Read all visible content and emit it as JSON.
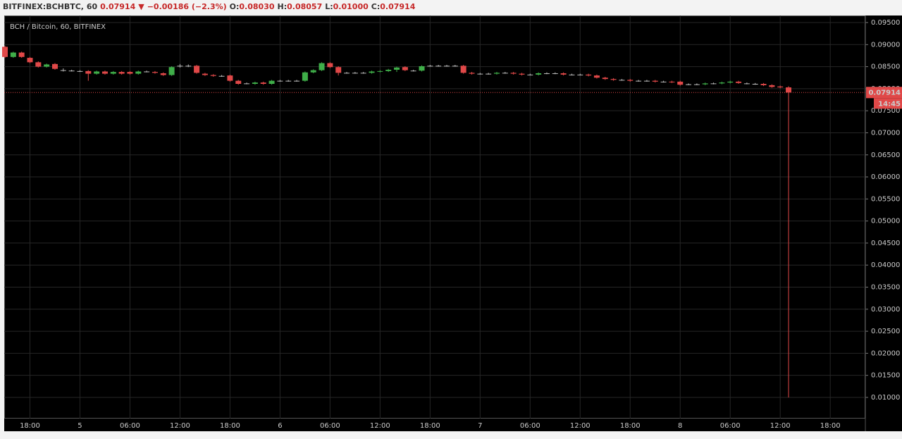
{
  "chart_data": {
    "type": "candlestick",
    "header": {
      "symbol": "BITFINEX:BCHBTC, 60",
      "last": "0.07914",
      "change": "−0.00186 (−2.3%)",
      "open_label": "O:",
      "open": "0.08030",
      "high_label": "H:",
      "high": "0.08057",
      "low_label": "L:",
      "low": "0.01000",
      "close_label": "C:",
      "close": "0.07914"
    },
    "title": "BCH / Bitcoin, 60, BITFINEX",
    "up_color": "#3fae49",
    "down_color": "#e04848",
    "grid": true,
    "categories": [
      null,
      null,
      null,
      "18:00",
      null,
      null,
      null,
      null,
      null,
      "5",
      null,
      null,
      null,
      null,
      null,
      "06:00",
      null,
      null,
      null,
      null,
      null,
      "12:00",
      null,
      null,
      null,
      null,
      null,
      "18:00",
      null,
      null,
      null,
      null,
      null,
      "6",
      null,
      null,
      null,
      null,
      null,
      "06:00",
      null,
      null,
      null,
      null,
      null,
      "12:00",
      null,
      null,
      null,
      null,
      null,
      "18:00",
      null,
      null,
      null,
      null,
      null,
      "7",
      null,
      null,
      null,
      null,
      null,
      "06:00",
      null,
      null,
      null,
      null,
      null,
      "12:00",
      null,
      null,
      null,
      null,
      null,
      "18:00",
      null,
      null,
      null,
      null,
      null,
      "8",
      null,
      null,
      null,
      null,
      null,
      "06:00",
      null,
      null,
      null,
      null,
      null,
      "12:00",
      null,
      null,
      null,
      null,
      null,
      "18:00",
      null,
      null,
      null,
      null
    ],
    "open": [
      0.0895,
      0.0872,
      0.0882,
      0.087,
      0.086,
      0.085,
      0.0856,
      0.0842,
      0.0841,
      0.084,
      0.084,
      0.0834,
      0.0839,
      0.0834,
      0.0838,
      0.0838,
      0.0834,
      0.0839,
      0.0838,
      0.0835,
      0.0831,
      0.0852,
      0.0852,
      0.0852,
      0.0834,
      0.0831,
      0.0829,
      0.083,
      0.0818,
      0.0812,
      0.0811,
      0.0814,
      0.0811,
      0.0818,
      0.0818,
      0.0818,
      0.0818,
      0.0837,
      0.0842,
      0.0858,
      0.0849,
      0.0836,
      0.0836,
      0.0836,
      0.0836,
      0.0839,
      0.084,
      0.0843,
      0.0849,
      0.0841,
      0.0841,
      0.0852,
      0.0852,
      0.0852,
      0.0852,
      0.0852,
      0.0836,
      0.0834,
      0.0834,
      0.0834,
      0.0836,
      0.0836,
      0.0834,
      0.0832,
      0.0832,
      0.0835,
      0.0835,
      0.0835,
      0.0832,
      0.0832,
      0.0832,
      0.083,
      0.0825,
      0.0822,
      0.082,
      0.082,
      0.0818,
      0.0818,
      0.0818,
      0.0816,
      0.0816,
      0.0816,
      0.081,
      0.081,
      0.081,
      0.0812,
      0.0812,
      0.0814,
      0.0816,
      0.0812,
      0.0811,
      0.0811,
      0.0808,
      0.0805,
      0.0803,
      null,
      null,
      null,
      null,
      null,
      null,
      null,
      null,
      null
    ],
    "high": [
      0.0897,
      0.0884,
      0.0884,
      0.0872,
      0.0862,
      0.0857,
      0.0858,
      0.0846,
      0.0843,
      0.0842,
      0.0842,
      0.0841,
      0.0841,
      0.084,
      0.084,
      0.084,
      0.0841,
      0.0841,
      0.084,
      0.0837,
      0.0851,
      0.0856,
      0.0855,
      0.0854,
      0.0836,
      0.0833,
      0.0831,
      0.0832,
      0.082,
      0.0814,
      0.0816,
      0.0816,
      0.082,
      0.082,
      0.082,
      0.082,
      0.0839,
      0.0844,
      0.086,
      0.086,
      0.0851,
      0.0838,
      0.0838,
      0.0838,
      0.0841,
      0.0842,
      0.0845,
      0.085,
      0.0851,
      0.0843,
      0.0853,
      0.0854,
      0.0854,
      0.0854,
      0.0854,
      0.0854,
      0.0838,
      0.0836,
      0.0836,
      0.0838,
      0.0838,
      0.0838,
      0.0836,
      0.0834,
      0.0837,
      0.0837,
      0.0837,
      0.0837,
      0.0834,
      0.0834,
      0.0834,
      0.0832,
      0.0827,
      0.0824,
      0.0822,
      0.0822,
      0.082,
      0.082,
      0.082,
      0.0818,
      0.0818,
      0.0818,
      0.0812,
      0.0812,
      0.0814,
      0.0814,
      0.0816,
      0.0818,
      0.0818,
      0.0814,
      0.0813,
      0.0813,
      0.081,
      0.0807,
      0.08057,
      null,
      null,
      null,
      null,
      null,
      null,
      null,
      null,
      null
    ],
    "low": [
      0.087,
      0.087,
      0.087,
      0.0858,
      0.0848,
      0.0848,
      0.0843,
      0.0839,
      0.0839,
      0.0838,
      0.0818,
      0.0832,
      0.0832,
      0.0832,
      0.0832,
      0.0832,
      0.0832,
      0.0837,
      0.0834,
      0.0829,
      0.0829,
      0.0848,
      0.0849,
      0.0834,
      0.0829,
      0.0827,
      0.0827,
      0.0816,
      0.0809,
      0.081,
      0.0809,
      0.0809,
      0.0809,
      0.0816,
      0.0816,
      0.0816,
      0.0816,
      0.0835,
      0.084,
      0.0847,
      0.083,
      0.0834,
      0.0834,
      0.0834,
      0.0834,
      0.0837,
      0.0838,
      0.0838,
      0.084,
      0.0839,
      0.0839,
      0.085,
      0.085,
      0.085,
      0.085,
      0.0834,
      0.0832,
      0.0832,
      0.0832,
      0.0832,
      0.0834,
      0.0832,
      0.083,
      0.083,
      0.083,
      0.0833,
      0.0833,
      0.083,
      0.083,
      0.083,
      0.0828,
      0.0823,
      0.082,
      0.0818,
      0.0818,
      0.0816,
      0.0816,
      0.0816,
      0.0814,
      0.0814,
      0.0813,
      0.0807,
      0.0808,
      0.0808,
      0.0808,
      0.081,
      0.081,
      0.0812,
      0.0811,
      0.081,
      0.0809,
      0.0806,
      0.0802,
      0.0801,
      0.01,
      null,
      null,
      null,
      null,
      null,
      null,
      null,
      null,
      null
    ],
    "close": [
      0.0872,
      0.0882,
      0.0872,
      0.086,
      0.085,
      0.0855,
      0.0845,
      0.0842,
      0.0841,
      0.084,
      0.0834,
      0.0839,
      0.0834,
      0.0838,
      0.0834,
      0.0834,
      0.0839,
      0.0839,
      0.0836,
      0.0831,
      0.0849,
      0.0852,
      0.0852,
      0.0836,
      0.0831,
      0.0829,
      0.0829,
      0.0818,
      0.0811,
      0.0812,
      0.0814,
      0.0811,
      0.0818,
      0.0818,
      0.0818,
      0.0818,
      0.0837,
      0.0842,
      0.0858,
      0.0849,
      0.0836,
      0.0836,
      0.0836,
      0.0836,
      0.0839,
      0.084,
      0.0843,
      0.0848,
      0.0842,
      0.0841,
      0.0851,
      0.0852,
      0.0852,
      0.0852,
      0.0852,
      0.0836,
      0.0834,
      0.0834,
      0.0834,
      0.0836,
      0.0836,
      0.0834,
      0.0832,
      0.0832,
      0.0835,
      0.0835,
      0.0835,
      0.0832,
      0.0832,
      0.0832,
      0.083,
      0.0825,
      0.0822,
      0.082,
      0.082,
      0.0818,
      0.0818,
      0.0818,
      0.0816,
      0.0816,
      0.0815,
      0.0809,
      0.081,
      0.081,
      0.0812,
      0.0812,
      0.0814,
      0.0816,
      0.0813,
      0.0812,
      0.0811,
      0.0808,
      0.0804,
      0.0803,
      0.07914,
      null,
      null,
      null,
      null,
      null,
      null,
      null,
      null,
      null
    ],
    "ylim": [
      0.0052,
      0.0966
    ],
    "yticks": [
      {
        "value": 0.01,
        "label": "0.01000"
      },
      {
        "value": 0.015,
        "label": "0.01500"
      },
      {
        "value": 0.02,
        "label": "0.02000"
      },
      {
        "value": 0.025,
        "label": "0.02500"
      },
      {
        "value": 0.03,
        "label": "0.03000"
      },
      {
        "value": 0.035,
        "label": "0.03500"
      },
      {
        "value": 0.04,
        "label": "0.04000"
      },
      {
        "value": 0.045,
        "label": "0.04500"
      },
      {
        "value": 0.05,
        "label": "0.05000"
      },
      {
        "value": 0.055,
        "label": "0.05500"
      },
      {
        "value": 0.06,
        "label": "0.06000"
      },
      {
        "value": 0.065,
        "label": "0.06500"
      },
      {
        "value": 0.07,
        "label": "0.07000"
      },
      {
        "value": 0.075,
        "label": "0.07500"
      },
      {
        "value": 0.08,
        "label": "0.08000"
      },
      {
        "value": 0.085,
        "label": "0.08500"
      },
      {
        "value": 0.09,
        "label": "0.09000"
      },
      {
        "value": 0.095,
        "label": "0.09500"
      }
    ],
    "last_price": {
      "value": 0.07914,
      "label": "0.07914"
    },
    "countdown": "14:45"
  }
}
